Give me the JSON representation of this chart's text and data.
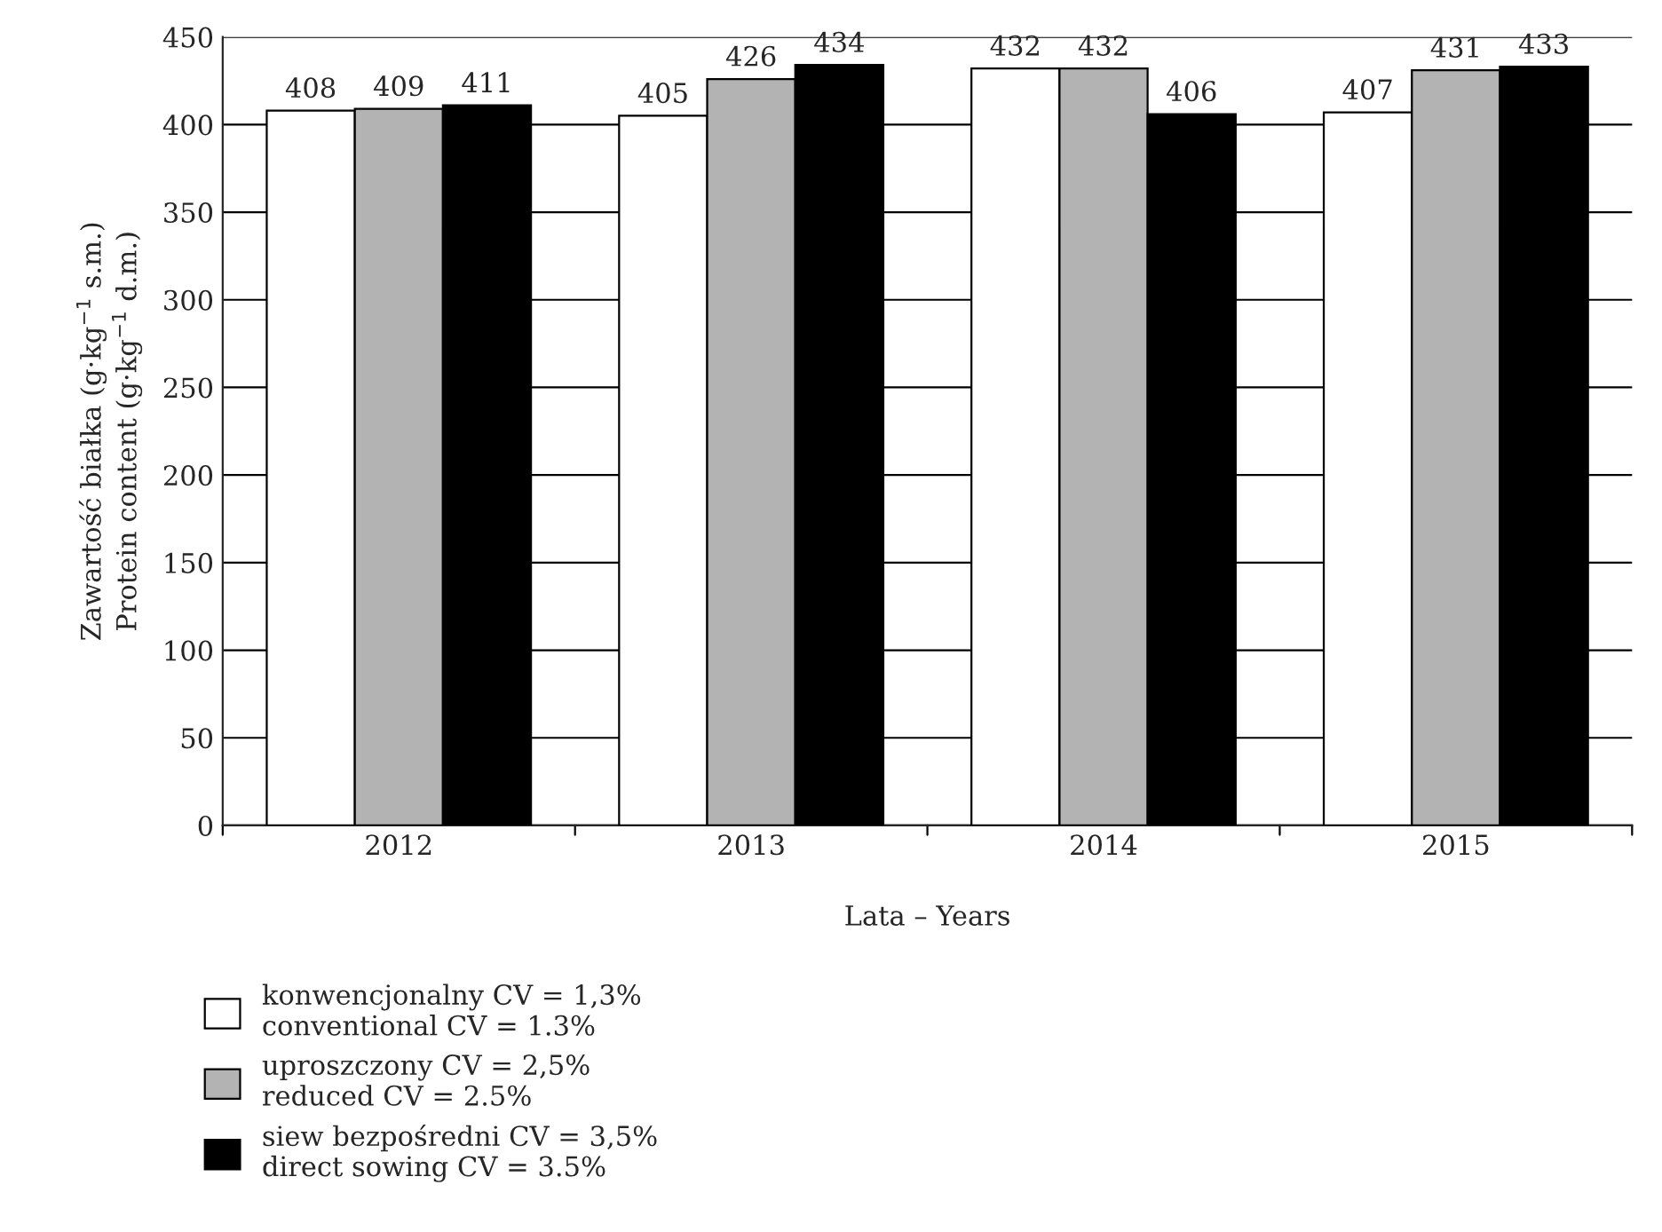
{
  "chart_data": {
    "type": "bar",
    "xlabel": "Lata – Years",
    "ylabel": "Zawartość białka (g·kg$^{−1}$ s.m.)\nProtein content (g·kg$^{−1}$ d.m.)",
    "categories": [
      "2012",
      "2013",
      "2014",
      "2015"
    ],
    "series": [
      {
        "name": "konwencjonalny CV = 1,3%\nconventional CV = 1.3%",
        "color": "#ffffff",
        "values": [
          408,
          405,
          432,
          407
        ]
      },
      {
        "name": "uproszczony CV = 2,5%\nreduced CV = 2.5%",
        "color": "#b3b3b3",
        "values": [
          409,
          426,
          432,
          431
        ]
      },
      {
        "name": "siew bezpośredni CV = 3,5%\ndirect sowing CV = 3.5%",
        "color": "#000000",
        "values": [
          411,
          434,
          406,
          433
        ]
      }
    ],
    "ylim": [
      0,
      450
    ],
    "yticks": [
      0,
      50,
      100,
      150,
      200,
      250,
      300,
      350,
      400,
      450
    ],
    "grid": "y",
    "legend": "bottom",
    "data_labels": true
  }
}
